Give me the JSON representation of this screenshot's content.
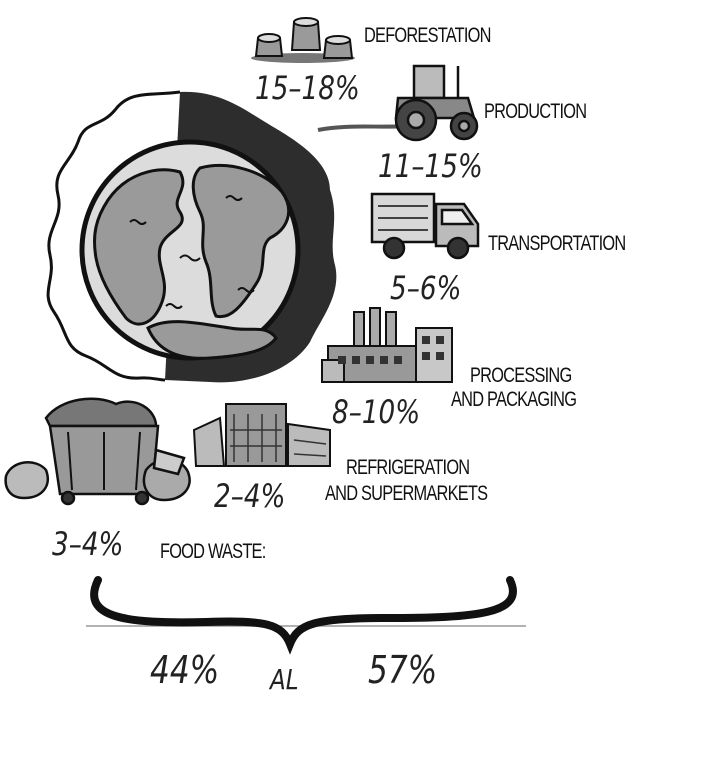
{
  "categories": [
    {
      "label": "DEFORESTATION",
      "percent": "15–18%"
    },
    {
      "label": "PRODUCTION",
      "percent": "11–15%"
    },
    {
      "label": "TRANSPORTATION",
      "percent": "5–6%"
    },
    {
      "label_line1": "PROCESSING",
      "label_line2": "AND PACKAGING",
      "percent": "8–10%"
    },
    {
      "label_line1": "REFRIGERATION",
      "label_line2": "AND SUPERMARKETS",
      "percent": "2–4%"
    },
    {
      "label": "FOOD WASTE:",
      "percent": "3–4%"
    }
  ],
  "total": {
    "low": "44%",
    "connector": "AL",
    "high": "57%"
  },
  "colors": {
    "ink": "#111111",
    "earth_shadow": "#2d2d2d",
    "land": "#9a9a9a",
    "ocean": "#dcdcdc"
  }
}
